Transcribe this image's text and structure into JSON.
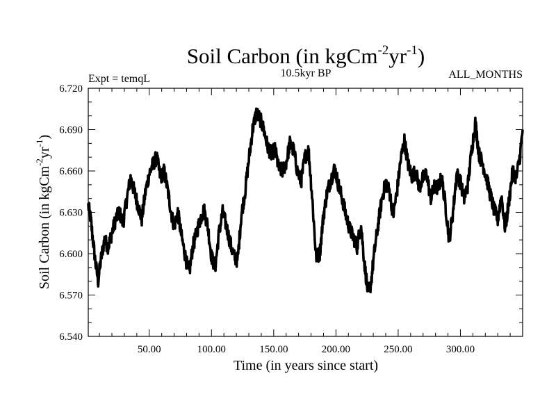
{
  "chart_data": {
    "type": "line",
    "title_main": "Soil Carbon (in kgCm",
    "title_sup1": "-2",
    "title_mid": "yr",
    "title_sup2": "-1",
    "title_end": ")",
    "left_label": "Expt = temqL",
    "center_label": "10.5kyr BP",
    "right_label": "ALL_MONTHS",
    "xlabel": "Time (in years since start)",
    "ylabel_main": "Soil Carbon (in kgCm",
    "ylabel_sup1": "-2",
    "ylabel_mid": "yr",
    "ylabel_sup2": "-1",
    "ylabel_end": ")",
    "xlim": [
      1,
      350
    ],
    "ylim": [
      6.54,
      6.72
    ],
    "x_ticks": [
      50,
      100,
      150,
      200,
      250,
      300
    ],
    "x_tick_labels": [
      "50.00",
      "100.00",
      "150.00",
      "200.00",
      "250.00",
      "300.00"
    ],
    "y_ticks": [
      6.54,
      6.57,
      6.6,
      6.63,
      6.66,
      6.69,
      6.72
    ],
    "y_tick_labels": [
      "6.540",
      "6.570",
      "6.600",
      "6.630",
      "6.660",
      "6.690",
      "6.720"
    ],
    "series": [
      {
        "name": "Soil Carbon",
        "color": "#000000",
        "x": [
          1,
          3,
          5,
          7,
          9,
          11,
          14,
          17,
          20,
          23,
          26,
          29,
          32,
          35,
          38,
          41,
          44,
          47,
          50,
          53,
          56,
          59,
          62,
          65,
          68,
          70,
          73,
          76,
          79,
          82,
          85,
          88,
          91,
          94,
          97,
          100,
          103,
          106,
          109,
          112,
          115,
          118,
          121,
          124,
          127,
          130,
          133,
          136,
          139,
          142,
          145,
          148,
          151,
          154,
          157,
          160,
          163,
          166,
          169,
          172,
          175,
          178,
          181,
          184,
          187,
          190,
          193,
          196,
          199,
          202,
          205,
          208,
          211,
          214,
          217,
          220,
          223,
          226,
          228,
          231,
          234,
          237,
          240,
          243,
          246,
          249,
          252,
          255,
          258,
          261,
          264,
          267,
          270,
          273,
          276,
          279,
          282,
          285,
          288,
          291,
          294,
          297,
          300,
          303,
          306,
          309,
          312,
          315,
          318,
          321,
          324,
          327,
          330,
          333,
          336,
          339,
          342,
          345,
          348,
          350
        ],
        "y": [
          6.635,
          6.625,
          6.608,
          6.592,
          6.58,
          6.595,
          6.61,
          6.605,
          6.615,
          6.625,
          6.63,
          6.622,
          6.64,
          6.655,
          6.645,
          6.635,
          6.625,
          6.645,
          6.658,
          6.665,
          6.67,
          6.655,
          6.66,
          6.645,
          6.628,
          6.62,
          6.63,
          6.612,
          6.598,
          6.585,
          6.605,
          6.615,
          6.625,
          6.632,
          6.62,
          6.598,
          6.59,
          6.615,
          6.63,
          6.62,
          6.608,
          6.598,
          6.595,
          6.628,
          6.645,
          6.668,
          6.69,
          6.702,
          6.698,
          6.69,
          6.678,
          6.672,
          6.676,
          6.662,
          6.66,
          6.666,
          6.68,
          6.675,
          6.66,
          6.652,
          6.67,
          6.675,
          6.64,
          6.598,
          6.6,
          6.628,
          6.645,
          6.654,
          6.662,
          6.65,
          6.64,
          6.628,
          6.618,
          6.612,
          6.605,
          6.622,
          6.592,
          6.57,
          6.578,
          6.602,
          6.622,
          6.64,
          6.652,
          6.645,
          6.628,
          6.645,
          6.668,
          6.682,
          6.665,
          6.656,
          6.66,
          6.648,
          6.655,
          6.658,
          6.64,
          6.648,
          6.648,
          6.655,
          6.635,
          6.61,
          6.63,
          6.658,
          6.652,
          6.64,
          6.65,
          6.675,
          6.695,
          6.672,
          6.665,
          6.655,
          6.643,
          6.632,
          6.625,
          6.642,
          6.618,
          6.638,
          6.66,
          6.655,
          6.672,
          6.69
        ]
      }
    ]
  }
}
